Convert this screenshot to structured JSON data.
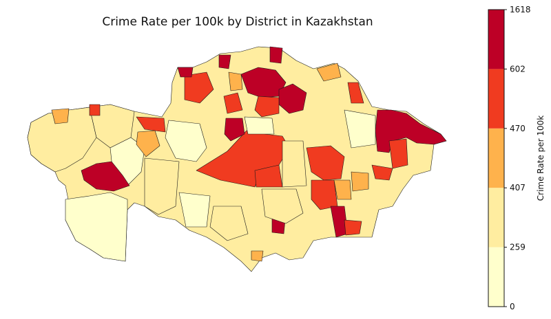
{
  "title": "Crime Rate per 100k by District in Kazakhstan",
  "colorbar": {
    "label": "Crime Rate per 100k",
    "ticks": [
      "0",
      "259",
      "407",
      "470",
      "602",
      "1618"
    ],
    "colors": [
      "#ffffcc",
      "#ffeda0",
      "#feb24c",
      "#f03b20",
      "#bd0026"
    ]
  }
}
